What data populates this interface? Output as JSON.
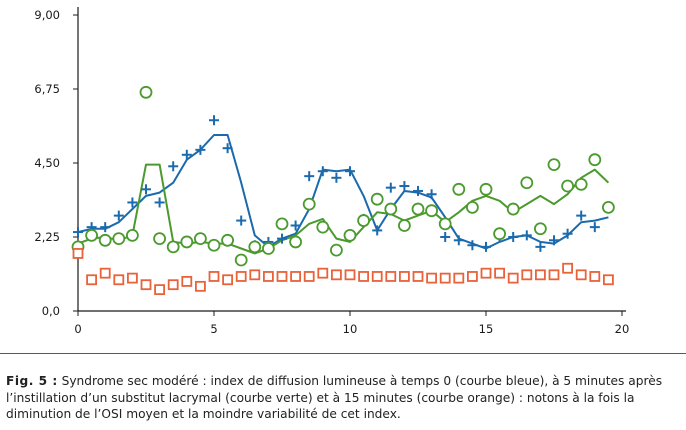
{
  "chart_data": {
    "type": "line",
    "title": "",
    "xlabel": "",
    "ylabel": "",
    "xlim": [
      0,
      20
    ],
    "ylim": [
      0,
      9
    ],
    "x_ticks": [
      "0",
      "5",
      "10",
      "15",
      "20"
    ],
    "y_ticks": [
      "0,0",
      "2,25",
      "4,50",
      "6,75",
      "9,00"
    ],
    "y_tick_values": [
      0,
      2.25,
      4.5,
      6.75,
      9
    ],
    "x_tick_values": [
      0,
      5,
      10,
      15,
      20
    ],
    "series": [
      {
        "name": "temps 0 (courbe bleue)",
        "color": "#1a6aad",
        "marker": "plus",
        "points": [
          [
            0,
            2.4
          ],
          [
            0.5,
            2.55
          ],
          [
            1,
            2.55
          ],
          [
            1.5,
            2.9
          ],
          [
            2,
            3.3
          ],
          [
            2.5,
            3.7
          ],
          [
            3,
            3.3
          ],
          [
            3.5,
            4.4
          ],
          [
            4,
            4.75
          ],
          [
            4.5,
            4.9
          ],
          [
            5,
            5.8
          ],
          [
            5.5,
            4.95
          ],
          [
            6,
            2.75
          ],
          [
            6.5,
            2.0
          ],
          [
            7,
            2.1
          ],
          [
            7.5,
            2.2
          ],
          [
            8,
            2.6
          ],
          [
            8.5,
            4.1
          ],
          [
            9,
            4.25
          ],
          [
            9.5,
            4.05
          ],
          [
            10,
            4.25
          ],
          [
            10.5,
            2.8
          ],
          [
            11,
            2.45
          ],
          [
            11.5,
            3.75
          ],
          [
            12,
            3.8
          ],
          [
            12.5,
            3.65
          ],
          [
            13,
            3.55
          ],
          [
            13.5,
            2.25
          ],
          [
            14,
            2.15
          ],
          [
            14.5,
            2.0
          ],
          [
            15,
            1.95
          ],
          [
            15.5,
            2.25
          ],
          [
            16,
            2.25
          ],
          [
            16.5,
            2.3
          ],
          [
            17,
            1.95
          ],
          [
            17.5,
            2.15
          ],
          [
            18,
            2.35
          ],
          [
            18.5,
            2.9
          ],
          [
            19,
            2.55
          ],
          [
            19.5,
            3.15
          ]
        ],
        "curve": [
          [
            0,
            2.4
          ],
          [
            0.5,
            2.5
          ],
          [
            1,
            2.5
          ],
          [
            1.5,
            2.7
          ],
          [
            2,
            3.1
          ],
          [
            2.5,
            3.5
          ],
          [
            3,
            3.6
          ],
          [
            3.5,
            3.9
          ],
          [
            4,
            4.6
          ],
          [
            4.5,
            4.9
          ],
          [
            5,
            5.35
          ],
          [
            5.5,
            5.35
          ],
          [
            6,
            3.9
          ],
          [
            6.5,
            2.3
          ],
          [
            7,
            1.95
          ],
          [
            7.5,
            2.2
          ],
          [
            8,
            2.35
          ],
          [
            8.5,
            3.1
          ],
          [
            9,
            4.3
          ],
          [
            9.5,
            4.25
          ],
          [
            10,
            4.3
          ],
          [
            10.5,
            3.5
          ],
          [
            11,
            2.45
          ],
          [
            11.5,
            3.1
          ],
          [
            12,
            3.65
          ],
          [
            12.5,
            3.6
          ],
          [
            13,
            3.45
          ],
          [
            13.5,
            2.85
          ],
          [
            14,
            2.2
          ],
          [
            14.5,
            2.05
          ],
          [
            15,
            1.9
          ],
          [
            15.5,
            2.1
          ],
          [
            16,
            2.25
          ],
          [
            16.5,
            2.3
          ],
          [
            17,
            2.1
          ],
          [
            17.5,
            2.05
          ],
          [
            18,
            2.3
          ],
          [
            18.5,
            2.7
          ],
          [
            19,
            2.75
          ],
          [
            19.5,
            2.85
          ]
        ]
      },
      {
        "name": "5 minutes (courbe verte)",
        "color": "#4a9a2e",
        "marker": "circle",
        "points": [
          [
            0,
            1.95
          ],
          [
            0.5,
            2.3
          ],
          [
            1,
            2.15
          ],
          [
            1.5,
            2.2
          ],
          [
            2,
            2.3
          ],
          [
            2.5,
            6.65
          ],
          [
            3,
            2.2
          ],
          [
            3.5,
            1.95
          ],
          [
            4,
            2.1
          ],
          [
            4.5,
            2.2
          ],
          [
            5,
            2.0
          ],
          [
            5.5,
            2.15
          ],
          [
            6,
            1.55
          ],
          [
            6.5,
            1.95
          ],
          [
            7,
            1.9
          ],
          [
            7.5,
            2.65
          ],
          [
            8,
            2.1
          ],
          [
            8.5,
            3.25
          ],
          [
            9,
            2.55
          ],
          [
            9.5,
            1.85
          ],
          [
            10,
            2.3
          ],
          [
            10.5,
            2.75
          ],
          [
            11,
            3.4
          ],
          [
            11.5,
            3.1
          ],
          [
            12,
            2.6
          ],
          [
            12.5,
            3.1
          ],
          [
            13,
            3.05
          ],
          [
            13.5,
            2.65
          ],
          [
            14,
            3.7
          ],
          [
            14.5,
            3.15
          ],
          [
            15,
            3.7
          ],
          [
            15.5,
            2.35
          ],
          [
            16,
            3.1
          ],
          [
            16.5,
            3.9
          ],
          [
            17,
            2.5
          ],
          [
            17.5,
            4.45
          ],
          [
            18,
            3.8
          ],
          [
            18.5,
            3.85
          ],
          [
            19,
            4.6
          ],
          [
            19.5,
            3.15
          ]
        ],
        "curve": [
          [
            0,
            2.05
          ],
          [
            0.5,
            2.2
          ],
          [
            1,
            2.25
          ],
          [
            1.5,
            2.15
          ],
          [
            2,
            2.3
          ],
          [
            2.5,
            4.45
          ],
          [
            3,
            4.45
          ],
          [
            3.5,
            2.1
          ],
          [
            4,
            2.05
          ],
          [
            4.5,
            2.1
          ],
          [
            5,
            2.05
          ],
          [
            5.5,
            2.05
          ],
          [
            6,
            1.9
          ],
          [
            6.5,
            1.75
          ],
          [
            7,
            1.9
          ],
          [
            7.5,
            2.15
          ],
          [
            8,
            2.3
          ],
          [
            8.5,
            2.65
          ],
          [
            9,
            2.8
          ],
          [
            9.5,
            2.2
          ],
          [
            10,
            2.1
          ],
          [
            10.5,
            2.55
          ],
          [
            11,
            3.0
          ],
          [
            11.5,
            2.95
          ],
          [
            12,
            2.75
          ],
          [
            12.5,
            2.9
          ],
          [
            13,
            3.05
          ],
          [
            13.5,
            2.7
          ],
          [
            14,
            3.0
          ],
          [
            14.5,
            3.35
          ],
          [
            15,
            3.5
          ],
          [
            15.5,
            3.35
          ],
          [
            16,
            3.0
          ],
          [
            16.5,
            3.25
          ],
          [
            17,
            3.5
          ],
          [
            17.5,
            3.25
          ],
          [
            18,
            3.55
          ],
          [
            18.5,
            4.05
          ],
          [
            19,
            4.3
          ],
          [
            19.5,
            3.9
          ]
        ]
      },
      {
        "name": "15 minutes (courbe orange)",
        "color": "#e8623a",
        "marker": "square",
        "points": [
          [
            0,
            1.75
          ],
          [
            0.5,
            0.95
          ],
          [
            1,
            1.15
          ],
          [
            1.5,
            0.95
          ],
          [
            2,
            1.0
          ],
          [
            2.5,
            0.8
          ],
          [
            3,
            0.65
          ],
          [
            3.5,
            0.8
          ],
          [
            4,
            0.9
          ],
          [
            4.5,
            0.75
          ],
          [
            5,
            1.05
          ],
          [
            5.5,
            0.95
          ],
          [
            6,
            1.05
          ],
          [
            6.5,
            1.1
          ],
          [
            7,
            1.05
          ],
          [
            7.5,
            1.05
          ],
          [
            8,
            1.05
          ],
          [
            8.5,
            1.05
          ],
          [
            9,
            1.15
          ],
          [
            9.5,
            1.1
          ],
          [
            10,
            1.1
          ],
          [
            10.5,
            1.05
          ],
          [
            11,
            1.05
          ],
          [
            11.5,
            1.05
          ],
          [
            12,
            1.05
          ],
          [
            12.5,
            1.05
          ],
          [
            13,
            1.0
          ],
          [
            13.5,
            1.0
          ],
          [
            14,
            1.0
          ],
          [
            14.5,
            1.05
          ],
          [
            15,
            1.15
          ],
          [
            15.5,
            1.15
          ],
          [
            16,
            1.0
          ],
          [
            16.5,
            1.1
          ],
          [
            17,
            1.1
          ],
          [
            17.5,
            1.1
          ],
          [
            18,
            1.3
          ],
          [
            18.5,
            1.1
          ],
          [
            19,
            1.05
          ],
          [
            19.5,
            0.95
          ]
        ]
      }
    ]
  },
  "caption": {
    "label": "Fig. 5 :",
    "text": " Syndrome sec modéré : index de diffusion lumineuse à temps 0 (courbe bleue), à 5 minutes après l’instillation d’un substitut lacrymal (courbe verte) et à 15 minutes (courbe orange) : notons à la fois la diminution de l’OSI moyen et la moindre variabilité de cet index."
  }
}
